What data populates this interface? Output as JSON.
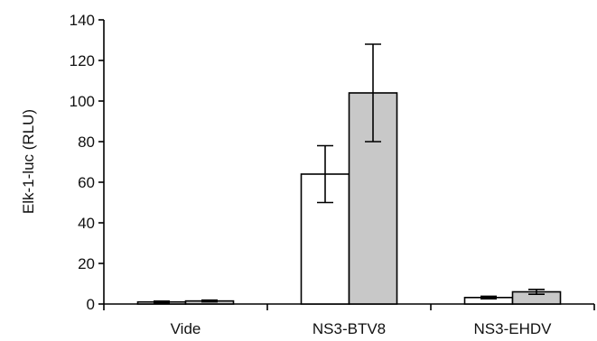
{
  "chart_data": {
    "type": "bar",
    "ylabel": "Elk-1-luc (RLU)",
    "xlabel": "",
    "ylim": [
      0,
      140
    ],
    "yticks": [
      0,
      20,
      40,
      60,
      80,
      100,
      120,
      140
    ],
    "grid": false,
    "legend": "none",
    "categories": [
      "Vide",
      "NS3-BTV8",
      "NS3-EHDV"
    ],
    "series": [
      {
        "color": "#ffffff",
        "values": [
          1.0,
          64,
          3.2
        ],
        "errors": [
          0.4,
          14,
          0.6
        ]
      },
      {
        "color": "#c8c8c8",
        "values": [
          1.5,
          104,
          6.0
        ],
        "errors": [
          0.4,
          24,
          1.2
        ]
      }
    ]
  }
}
